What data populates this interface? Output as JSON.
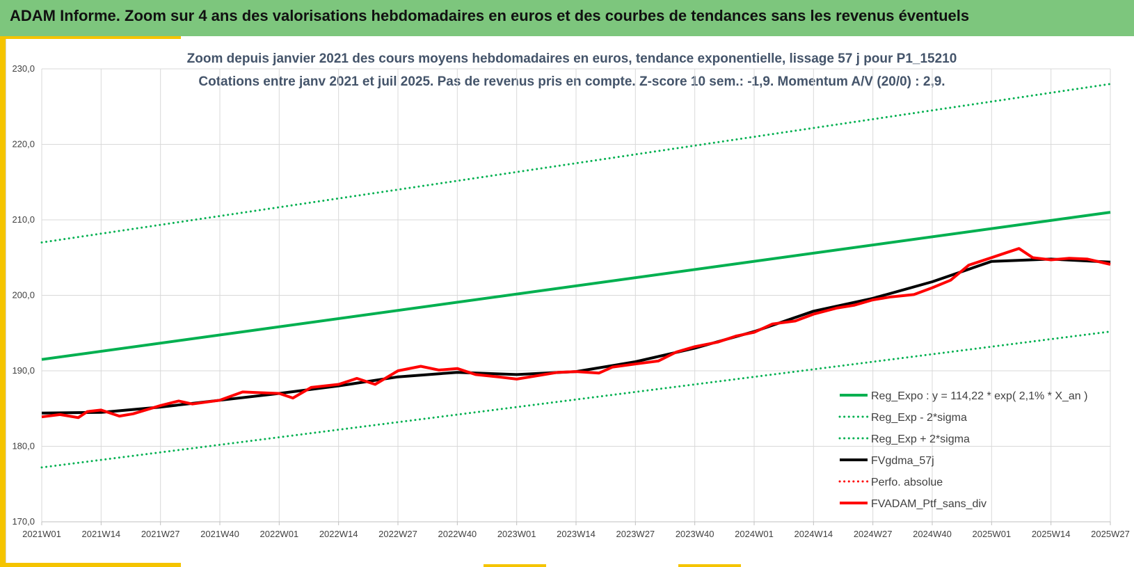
{
  "header": {
    "title": "ADAM Informe. Zoom sur 4 ans des valorisations hebdomadaires en euros et des courbes de tendances sans les revenus éventuels"
  },
  "chart_data": {
    "type": "line",
    "title": "Zoom depuis janvier 2021 des cours moyens hebdomadaires  en euros, tendance exponentielle, lissage 57 j pour P1_15210",
    "subtitle": "Cotations  entre janv 2021 et juil 2025. Pas de revenus pris en compte. Z-score 10 sem.: -1,9. Momentum A/V (20/0) : 2,9.",
    "xlabel": "",
    "ylabel": "",
    "ylim": [
      170,
      230
    ],
    "yticks": [
      "170,0",
      "180,0",
      "190,0",
      "200,0",
      "210,0",
      "220,0",
      "230,0"
    ],
    "x_ticks": [
      "2021W01",
      "2021W14",
      "2021W27",
      "2021W40",
      "2022W01",
      "2022W14",
      "2022W27",
      "2022W40",
      "2023W01",
      "2023W14",
      "2023W27",
      "2023W40",
      "2024W01",
      "2024W14",
      "2024W27",
      "2024W40",
      "2025W01",
      "2025W14",
      "2025W27"
    ],
    "grid": true,
    "legend_position": "bottom-right",
    "series": [
      {
        "name": "Reg_Expo : y = 114,22 * exp( 2,1% *  X_an )",
        "color": "#00b050",
        "style": "solid",
        "width": 4,
        "x": [
          "2021W01",
          "2025W27"
        ],
        "values": [
          191.5,
          211.0
        ]
      },
      {
        "name": "Reg_Exp - 2*sigma",
        "color": "#00b050",
        "style": "dotted",
        "width": 3,
        "x": [
          "2021W01",
          "2025W27"
        ],
        "values": [
          177.2,
          195.2
        ]
      },
      {
        "name": "Reg_Exp + 2*sigma",
        "color": "#00b050",
        "style": "dotted",
        "width": 3,
        "x": [
          "2021W01",
          "2025W27"
        ],
        "values": [
          207.0,
          228.0
        ]
      },
      {
        "name": "FVgdma_57j",
        "color": "#000000",
        "style": "solid",
        "width": 4,
        "x": [
          "2021W01",
          "2021W14",
          "2021W27",
          "2021W40",
          "2022W01",
          "2022W14",
          "2022W27",
          "2022W40",
          "2023W01",
          "2023W14",
          "2023W27",
          "2023W40",
          "2024W01",
          "2024W14",
          "2024W27",
          "2024W40",
          "2025W01",
          "2025W14",
          "2025W27"
        ],
        "values": [
          184.4,
          184.5,
          185.2,
          186.1,
          187.0,
          188.0,
          189.2,
          189.8,
          189.5,
          189.9,
          191.2,
          193.0,
          195.2,
          197.9,
          199.6,
          201.8,
          204.5,
          204.8,
          204.4
        ]
      },
      {
        "name": "Perfo. absolue",
        "color": "#ff0000",
        "style": "dotted",
        "width": 3,
        "x": [],
        "values": []
      },
      {
        "name": "FVADAM_Ptf_sans_div",
        "color": "#ff0000",
        "style": "solid",
        "width": 4,
        "x": [
          "2021W01",
          "2021W05",
          "2021W09",
          "2021W11",
          "2021W14",
          "2021W18",
          "2021W21",
          "2021W27",
          "2021W31",
          "2021W34",
          "2021W40",
          "2021W45",
          "2021W49",
          "2022W01",
          "2022W04",
          "2022W08",
          "2022W14",
          "2022W18",
          "2022W22",
          "2022W27",
          "2022W32",
          "2022W36",
          "2022W40",
          "2022W44",
          "2022W49",
          "2023W01",
          "2023W06",
          "2023W10",
          "2023W14",
          "2023W19",
          "2023W22",
          "2023W27",
          "2023W32",
          "2023W36",
          "2023W40",
          "2023W45",
          "2023W49",
          "2024W01",
          "2024W05",
          "2024W10",
          "2024W14",
          "2024W19",
          "2024W23",
          "2024W27",
          "2024W31",
          "2024W36",
          "2024W40",
          "2024W44",
          "2024W48",
          "2025W01",
          "2025W04",
          "2025W07",
          "2025W10",
          "2025W14",
          "2025W18",
          "2025W22",
          "2025W27"
        ],
        "values": [
          183.9,
          184.2,
          183.8,
          184.6,
          184.8,
          184.0,
          184.3,
          185.4,
          186.0,
          185.6,
          186.1,
          187.2,
          187.1,
          187.0,
          186.4,
          187.8,
          188.2,
          189.0,
          188.2,
          190.0,
          190.6,
          190.1,
          190.3,
          189.5,
          189.2,
          188.9,
          189.4,
          189.8,
          189.9,
          189.7,
          190.5,
          190.9,
          191.3,
          192.5,
          193.2,
          193.8,
          194.6,
          195.1,
          196.2,
          196.6,
          197.5,
          198.3,
          198.7,
          199.4,
          199.8,
          200.1,
          201.0,
          202.0,
          204.0,
          205.0,
          205.6,
          206.2,
          205.0,
          204.7,
          204.9,
          204.8,
          204.1
        ]
      }
    ]
  }
}
